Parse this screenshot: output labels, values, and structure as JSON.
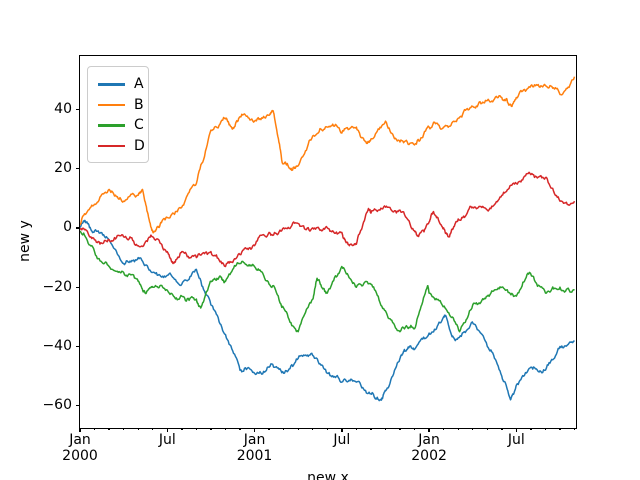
{
  "chart_data": {
    "type": "line",
    "title": "",
    "xlabel": "new x",
    "ylabel": "new y",
    "x_unit": "months since 2000-01",
    "xlim_months": [
      0,
      34.1
    ],
    "ylim": [
      -67.5,
      58
    ],
    "grid": false,
    "legend": {
      "position": "upper left",
      "entries": [
        "A",
        "B",
        "C",
        "D"
      ]
    },
    "x_ticks": {
      "major": [
        {
          "pos": 0,
          "line1": "Jan",
          "line2": "2000"
        },
        {
          "pos": 6,
          "line1": "Jul",
          "line2": ""
        },
        {
          "pos": 12,
          "line1": "Jan",
          "line2": "2001"
        },
        {
          "pos": 18,
          "line1": "Jul",
          "line2": ""
        },
        {
          "pos": 24,
          "line1": "Jan",
          "line2": "2002"
        },
        {
          "pos": 30,
          "line1": "Jul",
          "line2": ""
        }
      ],
      "minor_every_months": 1
    },
    "y_ticks": [
      {
        "value": 40,
        "label": "40"
      },
      {
        "value": 20,
        "label": "20"
      },
      {
        "value": 0,
        "label": "0"
      },
      {
        "value": -20,
        "label": "−20"
      },
      {
        "value": -40,
        "label": "−40"
      },
      {
        "value": -60,
        "label": "−60"
      }
    ],
    "series": [
      {
        "name": "A",
        "color": "#1f77b4",
        "points": [
          [
            0,
            0.5
          ],
          [
            0.3,
            2.5
          ],
          [
            1,
            -1
          ],
          [
            2,
            -4
          ],
          [
            3,
            -12
          ],
          [
            4,
            -10
          ],
          [
            5,
            -15
          ],
          [
            6,
            -16
          ],
          [
            7,
            -19
          ],
          [
            8,
            -14
          ],
          [
            9,
            -26
          ],
          [
            10,
            -36
          ],
          [
            11,
            -48
          ],
          [
            12,
            -49
          ],
          [
            13,
            -47
          ],
          [
            14,
            -49
          ],
          [
            15,
            -44
          ],
          [
            16,
            -43
          ],
          [
            17,
            -49
          ],
          [
            18,
            -52
          ],
          [
            19,
            -52
          ],
          [
            20,
            -56
          ],
          [
            20.7,
            -58
          ],
          [
            21,
            -55
          ],
          [
            22,
            -44
          ],
          [
            22.3,
            -41
          ],
          [
            23,
            -41
          ],
          [
            24,
            -35.5
          ],
          [
            25,
            -30
          ],
          [
            25.1,
            -29.5
          ],
          [
            25.8,
            -38
          ],
          [
            26.9,
            -32
          ],
          [
            28,
            -40
          ],
          [
            29,
            -50
          ],
          [
            29.6,
            -58
          ],
          [
            30,
            -53
          ],
          [
            31,
            -47
          ],
          [
            32,
            -48
          ],
          [
            33,
            -40
          ],
          [
            34,
            -38
          ]
        ]
      },
      {
        "name": "B",
        "color": "#ff7f0e",
        "points": [
          [
            0,
            1
          ],
          [
            1,
            8
          ],
          [
            2,
            13
          ],
          [
            3,
            9
          ],
          [
            4,
            11
          ],
          [
            4.3,
            13
          ],
          [
            4.9,
            0
          ],
          [
            5.05,
            -1.5
          ],
          [
            5.5,
            1
          ],
          [
            6,
            3.5
          ],
          [
            7,
            7
          ],
          [
            8,
            15
          ],
          [
            9,
            33
          ],
          [
            10,
            37
          ],
          [
            10.5,
            33.5
          ],
          [
            11,
            37.5
          ],
          [
            12,
            36
          ],
          [
            13,
            38
          ],
          [
            13.3,
            39
          ],
          [
            13.9,
            22
          ],
          [
            14.6,
            19.5
          ],
          [
            15,
            21
          ],
          [
            16,
            31
          ],
          [
            17,
            34
          ],
          [
            18,
            32
          ],
          [
            19,
            34
          ],
          [
            19.7,
            28.5
          ],
          [
            20,
            30
          ],
          [
            21,
            36
          ],
          [
            22,
            29
          ],
          [
            23,
            28
          ],
          [
            24,
            34
          ],
          [
            25,
            34
          ],
          [
            26,
            37
          ],
          [
            27,
            41
          ],
          [
            28,
            43
          ],
          [
            29,
            44
          ],
          [
            29.7,
            41
          ],
          [
            30,
            44
          ],
          [
            31,
            48
          ],
          [
            32,
            48
          ],
          [
            33,
            45
          ],
          [
            34,
            51
          ]
        ]
      },
      {
        "name": "C",
        "color": "#2ca02c",
        "points": [
          [
            0,
            -1
          ],
          [
            1,
            -8
          ],
          [
            2,
            -13
          ],
          [
            3,
            -15
          ],
          [
            4,
            -18
          ],
          [
            4.5,
            -22
          ],
          [
            5,
            -20
          ],
          [
            6,
            -21
          ],
          [
            7,
            -23
          ],
          [
            8,
            -24
          ],
          [
            8.3,
            -27
          ],
          [
            9,
            -18
          ],
          [
            9.6,
            -16.5
          ],
          [
            10,
            -18
          ],
          [
            11,
            -12
          ],
          [
            12,
            -13
          ],
          [
            13,
            -19
          ],
          [
            14,
            -27
          ],
          [
            15,
            -35
          ],
          [
            16,
            -24
          ],
          [
            16.3,
            -17
          ],
          [
            17,
            -22
          ],
          [
            18,
            -13
          ],
          [
            19,
            -20
          ],
          [
            20,
            -19
          ],
          [
            21,
            -28
          ],
          [
            22,
            -35
          ],
          [
            23,
            -34
          ],
          [
            23.9,
            -19.5
          ],
          [
            24,
            -22
          ],
          [
            25.1,
            -27
          ],
          [
            26.1,
            -35
          ],
          [
            27,
            -26
          ],
          [
            28,
            -23
          ],
          [
            29,
            -20
          ],
          [
            30,
            -23
          ],
          [
            30.9,
            -15
          ],
          [
            32,
            -22
          ],
          [
            33,
            -20
          ],
          [
            34,
            -21
          ]
        ]
      },
      {
        "name": "D",
        "color": "#d62728",
        "points": [
          [
            0,
            -0.5
          ],
          [
            1,
            -4
          ],
          [
            2,
            -4
          ],
          [
            3,
            -3
          ],
          [
            4,
            -6
          ],
          [
            5,
            -3
          ],
          [
            6,
            -8
          ],
          [
            6.4,
            -12
          ],
          [
            7,
            -8
          ],
          [
            8,
            -10
          ],
          [
            9,
            -8
          ],
          [
            10,
            -13
          ],
          [
            11,
            -9
          ],
          [
            12,
            -6
          ],
          [
            13,
            -1.5
          ],
          [
            14,
            0
          ],
          [
            15,
            1.5
          ],
          [
            16,
            0
          ],
          [
            17,
            0
          ],
          [
            18,
            -1.5
          ],
          [
            18.3,
            -5
          ],
          [
            19,
            -5.5
          ],
          [
            19.8,
            6
          ],
          [
            20,
            5
          ],
          [
            21,
            7
          ],
          [
            22,
            6
          ],
          [
            23,
            -1
          ],
          [
            23.3,
            -2.5
          ],
          [
            24,
            2
          ],
          [
            24.3,
            5.5
          ],
          [
            25,
            0
          ],
          [
            25.4,
            -3
          ],
          [
            26,
            3
          ],
          [
            27,
            7
          ],
          [
            28,
            6
          ],
          [
            29,
            11
          ],
          [
            30,
            15
          ],
          [
            31,
            18
          ],
          [
            32,
            17
          ],
          [
            33,
            9
          ],
          [
            34,
            9
          ]
        ]
      }
    ]
  }
}
